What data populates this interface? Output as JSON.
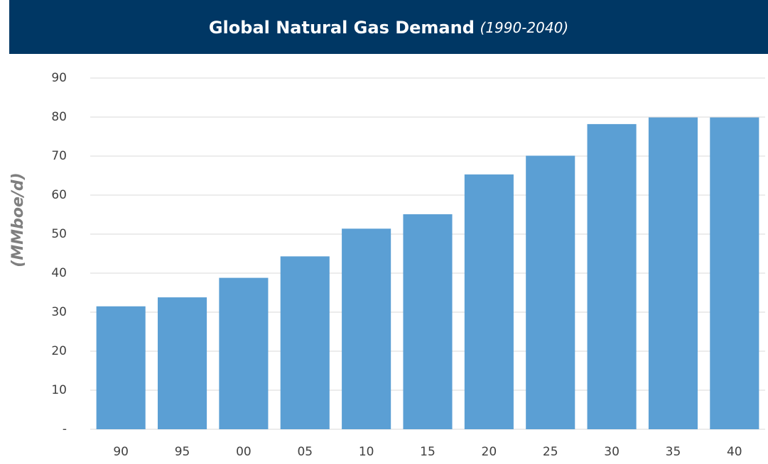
{
  "chart_data": {
    "type": "bar",
    "title": "Global Natural Gas Demand",
    "subtitle": "(1990-2040)",
    "y_label": "(MMboe/d)",
    "categories": [
      "90",
      "95",
      "00",
      "05",
      "10",
      "15",
      "20",
      "25",
      "30",
      "35",
      "40"
    ],
    "values": [
      31.5,
      33.8,
      38.8,
      44.3,
      51.4,
      55.1,
      65.3,
      70.1,
      78.2,
      79.9,
      79.9
    ],
    "color": "#5b9fd4",
    "ylim": [
      0,
      90
    ],
    "yticks": [
      {
        "value": 0,
        "label": "-"
      },
      10,
      20,
      30,
      40,
      50,
      60,
      70,
      80,
      90
    ],
    "grid": true
  }
}
